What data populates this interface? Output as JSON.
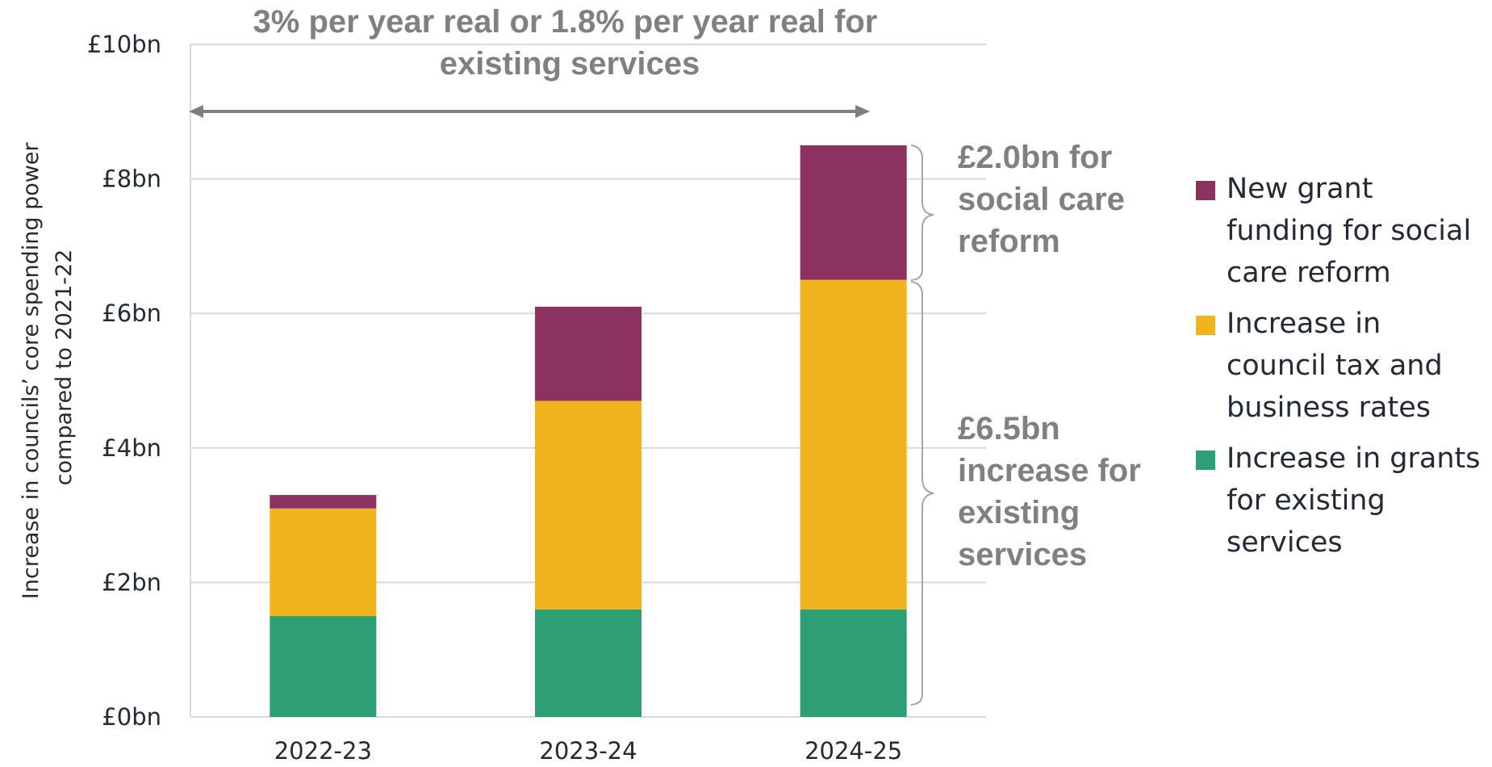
{
  "chart_data": {
    "type": "bar",
    "stacked": true,
    "categories": [
      "2022-23",
      "2023-24",
      "2024-25"
    ],
    "series": [
      {
        "name": "Increase in grants for existing services",
        "color": "#2e9e75",
        "values": [
          1.5,
          1.6,
          1.6
        ]
      },
      {
        "name": "Increase in council tax and business rates",
        "color": "#f0b41c",
        "values": [
          1.6,
          3.1,
          4.9
        ]
      },
      {
        "name": "New grant funding for social care reform",
        "color": "#8c3260",
        "values": [
          0.2,
          1.4,
          2.0
        ]
      }
    ],
    "ylabel_lines": [
      "Increase in councils’ core spending power",
      "compared to 2021-22"
    ],
    "yticks": [
      "£0bn",
      "£2bn",
      "£4bn",
      "£6bn",
      "£8bn",
      "£10bn"
    ],
    "ytick_values": [
      0,
      2,
      4,
      6,
      8,
      10
    ],
    "ylim": [
      0,
      10
    ],
    "grid": true,
    "legend_position": "right",
    "legend_order": [
      2,
      1,
      0
    ],
    "annotations": {
      "top_lines": [
        "3% per year real or 1.8% per year real for",
        "existing services"
      ],
      "upper_lines": [
        "£2.0bn for",
        "social care",
        "reform"
      ],
      "lower_lines": [
        "£6.5bn",
        "increase for",
        "existing",
        "services"
      ]
    }
  }
}
